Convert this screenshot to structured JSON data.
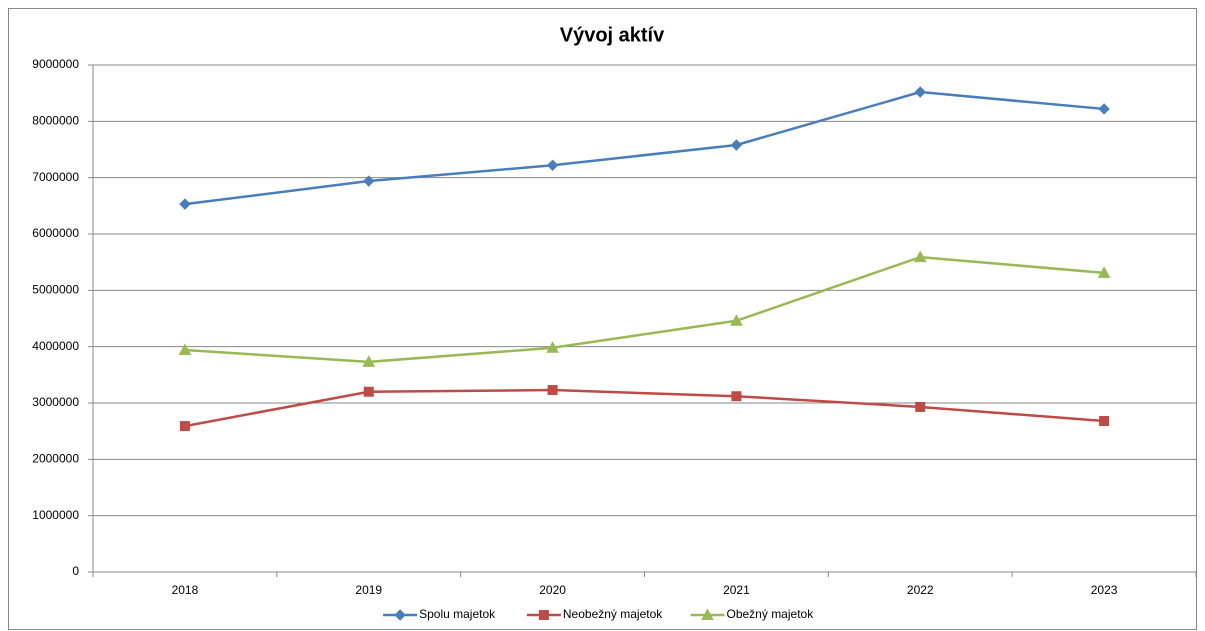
{
  "chart_data": {
    "type": "line",
    "title": "Vývoj aktív",
    "categories": [
      "2018",
      "2019",
      "2020",
      "2021",
      "2022",
      "2023"
    ],
    "series": [
      {
        "name": "Spolu majetok",
        "color": "#4a7ebb",
        "marker": "diamond",
        "values": [
          6530000,
          6940000,
          7220000,
          7580000,
          8520000,
          8220000
        ]
      },
      {
        "name": "Neobežný majetok",
        "color": "#be4b48",
        "marker": "square",
        "values": [
          2590000,
          3200000,
          3230000,
          3120000,
          2930000,
          2680000
        ]
      },
      {
        "name": "Obežný majetok",
        "color": "#98b954",
        "marker": "triangle",
        "values": [
          3940000,
          3730000,
          3980000,
          4460000,
          5590000,
          5310000
        ]
      }
    ],
    "ylim": [
      0,
      9000000
    ],
    "yticks": [
      0,
      1000000,
      2000000,
      3000000,
      4000000,
      5000000,
      6000000,
      7000000,
      8000000,
      9000000
    ],
    "grid": true,
    "legend": "bottom"
  }
}
